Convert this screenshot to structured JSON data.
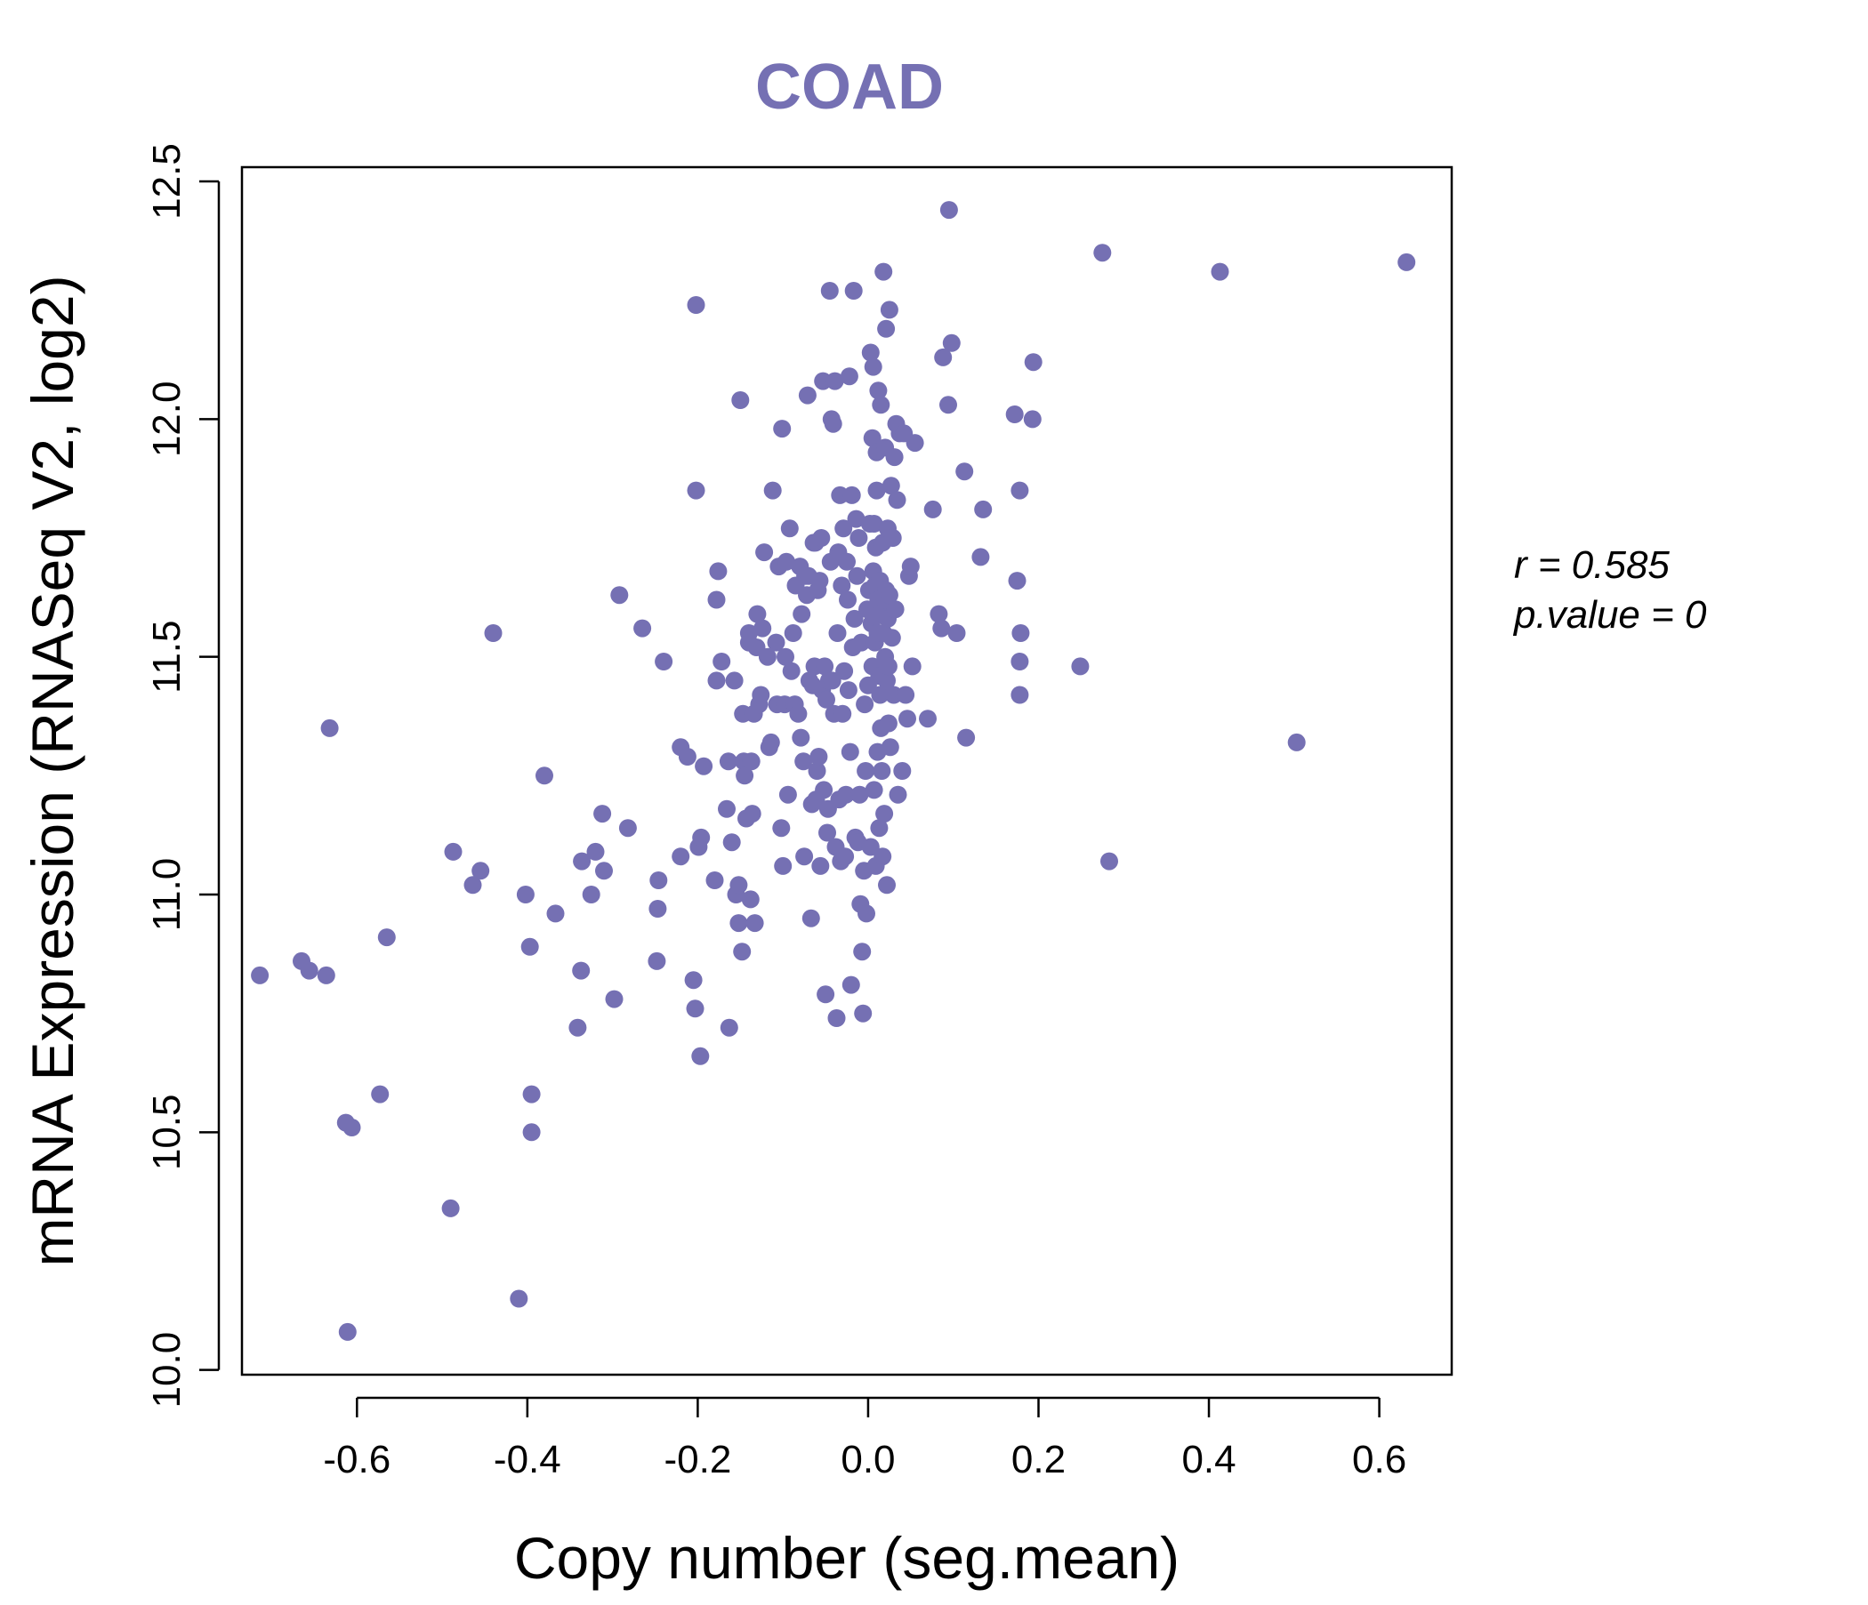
{
  "chart_data": {
    "type": "scatter",
    "title": "COAD",
    "xlabel": "Copy number (seg.mean)",
    "ylabel": "mRNA Expression (RNASeq V2, log2)",
    "xlim": [
      -0.735,
      0.685
    ],
    "ylim": [
      9.99,
      12.53
    ],
    "xticks": [
      -0.6,
      -0.4,
      -0.2,
      0.0,
      0.2,
      0.4,
      0.6
    ],
    "xtick_labels": [
      "-0.6",
      "-0.4",
      "-0.2",
      "0.0",
      "0.2",
      "0.4",
      "0.6"
    ],
    "yticks": [
      10.0,
      10.5,
      11.0,
      11.5,
      12.0,
      12.5
    ],
    "ytick_labels": [
      "10.0",
      "10.5",
      "11.0",
      "11.5",
      "12.0",
      "12.5"
    ],
    "grid": false,
    "point_color": "#7570b3",
    "annotation": {
      "r_label": "r = 0.585",
      "p_label": "p.value = 0"
    },
    "points": [
      [
        -0.714,
        10.83
      ],
      [
        -0.665,
        10.86
      ],
      [
        -0.656,
        10.84
      ],
      [
        -0.636,
        10.83
      ],
      [
        -0.632,
        11.35
      ],
      [
        -0.613,
        10.52
      ],
      [
        -0.606,
        10.51
      ],
      [
        -0.611,
        10.08
      ],
      [
        -0.573,
        10.58
      ],
      [
        -0.565,
        10.91
      ],
      [
        -0.49,
        10.34
      ],
      [
        -0.487,
        11.09
      ],
      [
        -0.464,
        11.02
      ],
      [
        -0.455,
        11.05
      ],
      [
        -0.44,
        11.55
      ],
      [
        -0.41,
        10.15
      ],
      [
        -0.402,
        11.0
      ],
      [
        -0.397,
        10.89
      ],
      [
        -0.395,
        10.58
      ],
      [
        -0.395,
        10.5
      ],
      [
        -0.38,
        11.25
      ],
      [
        -0.367,
        10.96
      ],
      [
        -0.341,
        10.72
      ],
      [
        -0.337,
        10.84
      ],
      [
        -0.336,
        11.07
      ],
      [
        -0.325,
        11.0
      ],
      [
        -0.32,
        11.09
      ],
      [
        -0.31,
        11.05
      ],
      [
        -0.312,
        11.17
      ],
      [
        -0.298,
        10.78
      ],
      [
        -0.292,
        11.63
      ],
      [
        -0.282,
        11.14
      ],
      [
        -0.265,
        11.56
      ],
      [
        -0.248,
        10.86
      ],
      [
        -0.247,
        10.97
      ],
      [
        -0.246,
        11.03
      ],
      [
        -0.24,
        11.49
      ],
      [
        -0.22,
        11.08
      ],
      [
        -0.22,
        11.31
      ],
      [
        -0.212,
        11.29
      ],
      [
        -0.205,
        10.82
      ],
      [
        -0.203,
        10.76
      ],
      [
        -0.202,
        11.85
      ],
      [
        -0.202,
        12.24
      ],
      [
        -0.199,
        11.1
      ],
      [
        -0.196,
        11.12
      ],
      [
        -0.197,
        10.66
      ],
      [
        -0.193,
        11.27
      ],
      [
        -0.18,
        11.03
      ],
      [
        -0.178,
        11.45
      ],
      [
        -0.178,
        11.62
      ],
      [
        -0.176,
        11.68
      ],
      [
        -0.172,
        11.49
      ],
      [
        -0.166,
        11.18
      ],
      [
        -0.164,
        11.28
      ],
      [
        -0.163,
        10.72
      ],
      [
        -0.16,
        11.11
      ],
      [
        -0.157,
        11.45
      ],
      [
        -0.155,
        11.0
      ],
      [
        -0.152,
        11.02
      ],
      [
        -0.152,
        10.94
      ],
      [
        -0.15,
        12.04
      ],
      [
        -0.148,
        10.88
      ],
      [
        -0.147,
        11.38
      ],
      [
        -0.146,
        11.28
      ],
      [
        -0.145,
        11.25
      ],
      [
        -0.143,
        11.16
      ],
      [
        -0.14,
        11.53
      ],
      [
        -0.14,
        11.55
      ],
      [
        -0.138,
        10.99
      ],
      [
        -0.137,
        11.28
      ],
      [
        -0.136,
        11.17
      ],
      [
        -0.134,
        11.38
      ],
      [
        -0.133,
        10.94
      ],
      [
        -0.131,
        11.52
      ],
      [
        -0.13,
        11.59
      ],
      [
        -0.128,
        11.4
      ],
      [
        -0.126,
        11.42
      ],
      [
        -0.124,
        11.56
      ],
      [
        -0.122,
        11.72
      ],
      [
        -0.118,
        11.5
      ],
      [
        -0.116,
        11.31
      ],
      [
        -0.114,
        11.32
      ],
      [
        -0.112,
        11.85
      ],
      [
        -0.108,
        11.53
      ],
      [
        -0.107,
        11.4
      ],
      [
        -0.105,
        11.69
      ],
      [
        -0.102,
        11.14
      ],
      [
        -0.101,
        11.98
      ],
      [
        -0.1,
        11.06
      ],
      [
        -0.098,
        11.4
      ],
      [
        -0.097,
        11.5
      ],
      [
        -0.096,
        11.7
      ],
      [
        -0.094,
        11.21
      ],
      [
        -0.092,
        11.77
      ],
      [
        -0.09,
        11.47
      ],
      [
        -0.088,
        11.55
      ],
      [
        -0.086,
        11.4
      ],
      [
        -0.085,
        11.65
      ],
      [
        -0.082,
        11.38
      ],
      [
        -0.08,
        11.69
      ],
      [
        -0.079,
        11.33
      ],
      [
        -0.078,
        11.59
      ],
      [
        -0.076,
        11.28
      ],
      [
        -0.075,
        11.08
      ],
      [
        -0.074,
        11.67
      ],
      [
        -0.072,
        11.63
      ],
      [
        -0.071,
        12.05
      ],
      [
        -0.07,
        11.67
      ],
      [
        -0.069,
        11.45
      ],
      [
        -0.067,
        10.95
      ],
      [
        -0.066,
        11.19
      ],
      [
        -0.065,
        11.44
      ],
      [
        -0.064,
        11.74
      ],
      [
        -0.063,
        11.48
      ],
      [
        -0.062,
        11.74
      ],
      [
        -0.061,
        11.2
      ],
      [
        -0.06,
        11.26
      ],
      [
        -0.059,
        11.64
      ],
      [
        -0.058,
        11.29
      ],
      [
        -0.057,
        11.66
      ],
      [
        -0.056,
        11.06
      ],
      [
        -0.055,
        11.75
      ],
      [
        -0.054,
        11.43
      ],
      [
        -0.053,
        12.08
      ],
      [
        -0.052,
        11.22
      ],
      [
        -0.051,
        11.48
      ],
      [
        -0.05,
        10.79
      ],
      [
        -0.049,
        11.41
      ],
      [
        -0.048,
        11.13
      ],
      [
        -0.047,
        11.18
      ],
      [
        -0.046,
        11.45
      ],
      [
        -0.045,
        12.27
      ],
      [
        -0.044,
        11.7
      ],
      [
        -0.043,
        12.0
      ],
      [
        -0.042,
        11.45
      ],
      [
        -0.041,
        11.99
      ],
      [
        -0.04,
        11.38
      ],
      [
        -0.039,
        12.08
      ],
      [
        -0.038,
        11.1
      ],
      [
        -0.037,
        10.74
      ],
      [
        -0.036,
        11.55
      ],
      [
        -0.035,
        11.72
      ],
      [
        -0.034,
        11.2
      ],
      [
        -0.033,
        11.84
      ],
      [
        -0.032,
        11.07
      ],
      [
        -0.031,
        11.65
      ],
      [
        -0.03,
        11.38
      ],
      [
        -0.029,
        11.77
      ],
      [
        -0.028,
        11.47
      ],
      [
        -0.027,
        11.08
      ],
      [
        -0.026,
        11.21
      ],
      [
        -0.025,
        11.7
      ],
      [
        -0.024,
        11.62
      ],
      [
        -0.023,
        11.43
      ],
      [
        -0.022,
        12.09
      ],
      [
        -0.021,
        11.3
      ],
      [
        -0.02,
        10.81
      ],
      [
        -0.019,
        11.84
      ],
      [
        -0.018,
        11.52
      ],
      [
        -0.017,
        12.27
      ],
      [
        -0.016,
        11.58
      ],
      [
        -0.015,
        11.12
      ],
      [
        -0.014,
        11.79
      ],
      [
        -0.013,
        11.67
      ],
      [
        -0.012,
        11.11
      ],
      [
        -0.011,
        11.75
      ],
      [
        -0.01,
        11.21
      ],
      [
        -0.009,
        10.98
      ],
      [
        -0.008,
        11.53
      ],
      [
        -0.007,
        10.88
      ],
      [
        -0.006,
        10.75
      ],
      [
        -0.005,
        11.05
      ],
      [
        -0.004,
        11.4
      ],
      [
        -0.003,
        11.26
      ],
      [
        -0.002,
        10.96
      ],
      [
        -0.001,
        11.6
      ],
      [
        0.0,
        11.44
      ],
      [
        0.001,
        11.64
      ],
      [
        0.002,
        11.78
      ],
      [
        0.003,
        12.14
      ],
      [
        0.003,
        11.1
      ],
      [
        0.004,
        11.57
      ],
      [
        0.005,
        11.48
      ],
      [
        0.005,
        11.96
      ],
      [
        0.006,
        11.68
      ],
      [
        0.006,
        12.11
      ],
      [
        0.007,
        11.22
      ],
      [
        0.007,
        11.78
      ],
      [
        0.008,
        11.53
      ],
      [
        0.008,
        11.65
      ],
      [
        0.009,
        11.06
      ],
      [
        0.009,
        11.73
      ],
      [
        0.01,
        11.93
      ],
      [
        0.01,
        11.85
      ],
      [
        0.011,
        11.55
      ],
      [
        0.011,
        11.3
      ],
      [
        0.012,
        11.62
      ],
      [
        0.012,
        12.06
      ],
      [
        0.013,
        11.14
      ],
      [
        0.013,
        11.46
      ],
      [
        0.014,
        11.66
      ],
      [
        0.014,
        11.42
      ],
      [
        0.015,
        12.03
      ],
      [
        0.015,
        11.35
      ],
      [
        0.016,
        11.59
      ],
      [
        0.016,
        11.26
      ],
      [
        0.017,
        11.74
      ],
      [
        0.017,
        11.08
      ],
      [
        0.018,
        12.31
      ],
      [
        0.018,
        11.55
      ],
      [
        0.019,
        11.62
      ],
      [
        0.019,
        11.17
      ],
      [
        0.02,
        11.94
      ],
      [
        0.02,
        11.5
      ],
      [
        0.021,
        12.19
      ],
      [
        0.021,
        11.64
      ],
      [
        0.022,
        11.02
      ],
      [
        0.022,
        11.45
      ],
      [
        0.023,
        11.77
      ],
      [
        0.023,
        11.58
      ],
      [
        0.024,
        11.36
      ],
      [
        0.024,
        11.48
      ],
      [
        0.025,
        11.63
      ],
      [
        0.025,
        12.23
      ],
      [
        0.026,
        11.31
      ],
      [
        0.027,
        11.86
      ],
      [
        0.028,
        11.54
      ],
      [
        0.029,
        11.75
      ],
      [
        0.03,
        11.42
      ],
      [
        0.031,
        11.92
      ],
      [
        0.032,
        11.6
      ],
      [
        0.033,
        11.99
      ],
      [
        0.034,
        11.83
      ],
      [
        0.035,
        11.21
      ],
      [
        0.037,
        11.97
      ],
      [
        0.04,
        11.26
      ],
      [
        0.042,
        11.97
      ],
      [
        0.044,
        11.42
      ],
      [
        0.046,
        11.37
      ],
      [
        0.048,
        11.67
      ],
      [
        0.05,
        11.69
      ],
      [
        0.052,
        11.48
      ],
      [
        0.055,
        11.95
      ],
      [
        0.07,
        11.37
      ],
      [
        0.076,
        11.81
      ],
      [
        0.083,
        11.59
      ],
      [
        0.086,
        11.56
      ],
      [
        0.088,
        12.13
      ],
      [
        0.094,
        12.03
      ],
      [
        0.095,
        12.44
      ],
      [
        0.098,
        12.16
      ],
      [
        0.104,
        11.55
      ],
      [
        0.113,
        11.89
      ],
      [
        0.115,
        11.33
      ],
      [
        0.132,
        11.71
      ],
      [
        0.135,
        11.81
      ],
      [
        0.172,
        12.01
      ],
      [
        0.175,
        11.66
      ],
      [
        0.178,
        11.85
      ],
      [
        0.178,
        11.49
      ],
      [
        0.178,
        11.42
      ],
      [
        0.179,
        11.55
      ],
      [
        0.193,
        12.0
      ],
      [
        0.194,
        12.12
      ],
      [
        0.249,
        11.48
      ],
      [
        0.275,
        12.35
      ],
      [
        0.283,
        11.07
      ],
      [
        0.413,
        12.31
      ],
      [
        0.503,
        11.32
      ],
      [
        0.632,
        12.33
      ]
    ]
  }
}
